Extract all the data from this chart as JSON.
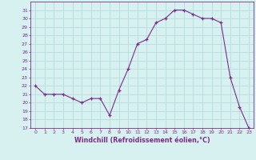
{
  "hours": [
    0,
    1,
    2,
    3,
    4,
    5,
    6,
    7,
    8,
    9,
    10,
    11,
    12,
    13,
    14,
    15,
    16,
    17,
    18,
    19,
    20,
    21,
    22,
    23
  ],
  "values": [
    22,
    21,
    21,
    21,
    20.5,
    20,
    20.5,
    20.5,
    18.5,
    21.5,
    24,
    27,
    27.5,
    29.5,
    30,
    31,
    31,
    30.5,
    30,
    30,
    29.5,
    23,
    19.5,
    17
  ],
  "line_color": "#7b2d8b",
  "marker_color": "#7b2d8b",
  "bg_color": "#d7f0f0",
  "grid_color": "#b0d8d8",
  "xlabel": "Windchill (Refroidissement éolien,°C)",
  "xlabel_color": "#7b2d8b",
  "tick_color": "#7b2d8b",
  "ylim": [
    17,
    32
  ],
  "yticks": [
    17,
    18,
    19,
    20,
    21,
    22,
    23,
    24,
    25,
    26,
    27,
    28,
    29,
    30,
    31
  ],
  "xticks": [
    0,
    1,
    2,
    3,
    4,
    5,
    6,
    7,
    8,
    9,
    10,
    11,
    12,
    13,
    14,
    15,
    16,
    17,
    18,
    19,
    20,
    21,
    22,
    23
  ],
  "axis_color": "#7b2d8b"
}
